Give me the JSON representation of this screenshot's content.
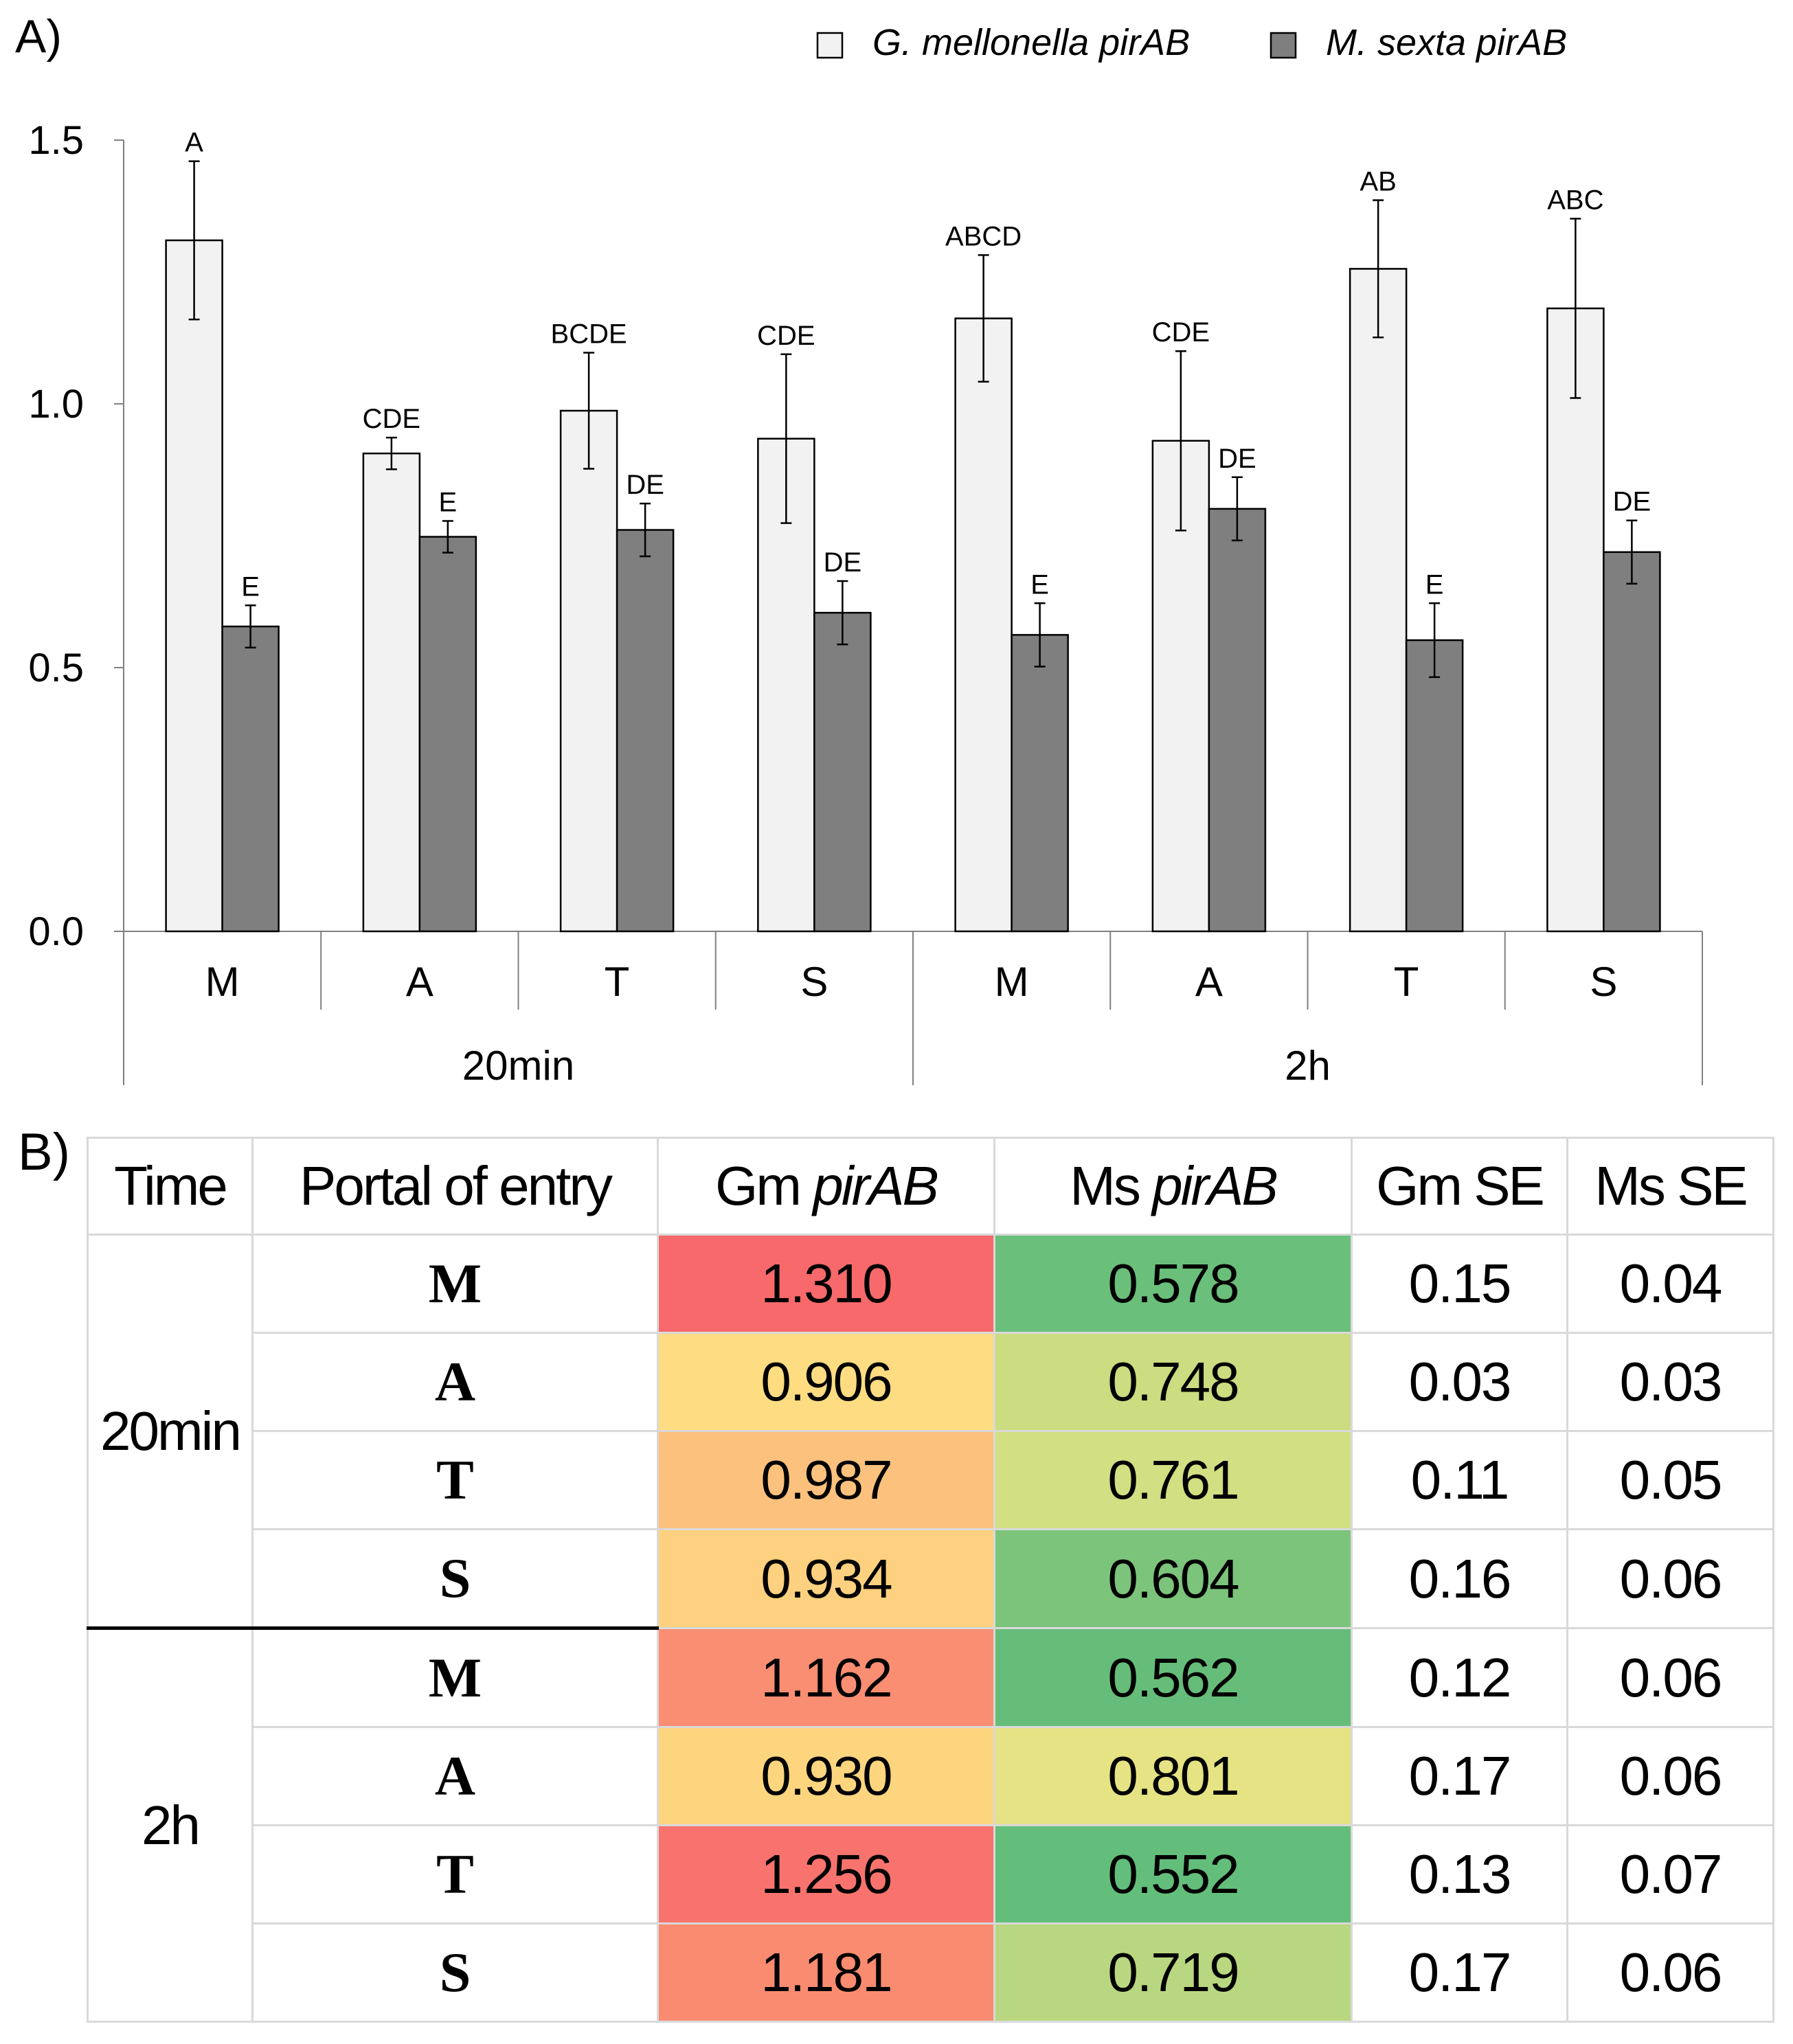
{
  "panel_a": {
    "label": "A)"
  },
  "chart_data": {
    "type": "bar",
    "title": "",
    "xlabel": "",
    "ylabel": "",
    "ylim": [
      0,
      1.5
    ],
    "yticks": [
      "0.0",
      "0.5",
      "1.0",
      "1.5"
    ],
    "yticks_values": [
      0,
      0.5,
      1.0,
      1.5
    ],
    "legend_position": "top-right",
    "groups": [
      "20min",
      "2h"
    ],
    "categories": [
      "M",
      "A",
      "T",
      "S",
      "M",
      "A",
      "T",
      "S"
    ],
    "series": [
      {
        "name": "G. mellonella pirAB",
        "color": "#f2f2f2",
        "values": [
          1.31,
          0.906,
          0.987,
          0.934,
          1.162,
          0.93,
          1.256,
          1.181
        ],
        "errors": [
          0.15,
          0.03,
          0.11,
          0.16,
          0.12,
          0.17,
          0.13,
          0.17
        ],
        "letters": [
          "A",
          "CDE",
          "BCDE",
          "CDE",
          "ABCD",
          "CDE",
          "AB",
          "ABC"
        ]
      },
      {
        "name": "M. sexta pirAB",
        "color": "#7f7f7f",
        "values": [
          0.578,
          0.748,
          0.761,
          0.604,
          0.562,
          0.801,
          0.552,
          0.719
        ],
        "errors": [
          0.04,
          0.03,
          0.05,
          0.06,
          0.06,
          0.06,
          0.07,
          0.06
        ],
        "letters": [
          "E",
          "E",
          "DE",
          "DE",
          "E",
          "DE",
          "E",
          "DE"
        ]
      }
    ]
  },
  "panel_b": {
    "label": "B)",
    "headers": {
      "time": "Time",
      "portal": "Portal of entry",
      "gm_prefix": "Gm ",
      "gm_italic": "pirAB",
      "ms_prefix": "Ms ",
      "ms_italic": "pirAB",
      "gm_se": "Gm SE",
      "ms_se": "Ms SE"
    },
    "rows": [
      {
        "time": "20min",
        "portal": "M",
        "gm": "1.310",
        "ms": "0.578",
        "gm_se": "0.15",
        "ms_se": "0.04",
        "gm_color": "#f8696b",
        "ms_color": "#6abf7b"
      },
      {
        "time": "20min",
        "portal": "A",
        "gm": "0.906",
        "ms": "0.748",
        "gm_color": "#fddc82",
        "ms_color": "#cbdc81",
        "gm_se": "0.03",
        "ms_se": "0.03"
      },
      {
        "time": "20min",
        "portal": "T",
        "gm": "0.987",
        "ms": "0.761",
        "gm_se": "0.11",
        "ms_se": "0.05",
        "gm_color": "#fcc17d",
        "ms_color": "#d2df82"
      },
      {
        "time": "20min",
        "portal": "S",
        "gm": "0.934",
        "ms": "0.604",
        "gm_se": "0.16",
        "ms_se": "0.06",
        "gm_color": "#fdd17f",
        "ms_color": "#7cc47c"
      },
      {
        "time": "2h",
        "portal": "M",
        "gm": "1.162",
        "ms": "0.562",
        "gm_se": "0.12",
        "ms_se": "0.06",
        "gm_color": "#f98e72",
        "ms_color": "#66bd7a"
      },
      {
        "time": "2h",
        "portal": "A",
        "gm": "0.930",
        "ms": "0.801",
        "gm_se": "0.17",
        "ms_se": "0.06",
        "gm_color": "#fdd57f",
        "ms_color": "#e5e383"
      },
      {
        "time": "2h",
        "portal": "T",
        "gm": "1.256",
        "ms": "0.552",
        "gm_se": "0.13",
        "ms_se": "0.07",
        "gm_color": "#f8736d",
        "ms_color": "#63be7b"
      },
      {
        "time": "2h",
        "portal": "S",
        "gm": "1.181",
        "ms": "0.719",
        "gm_se": "0.17",
        "ms_se": "0.06",
        "gm_color": "#f98b71",
        "ms_color": "#b9d780"
      }
    ],
    "time_groups": [
      "20min",
      "2h"
    ]
  }
}
